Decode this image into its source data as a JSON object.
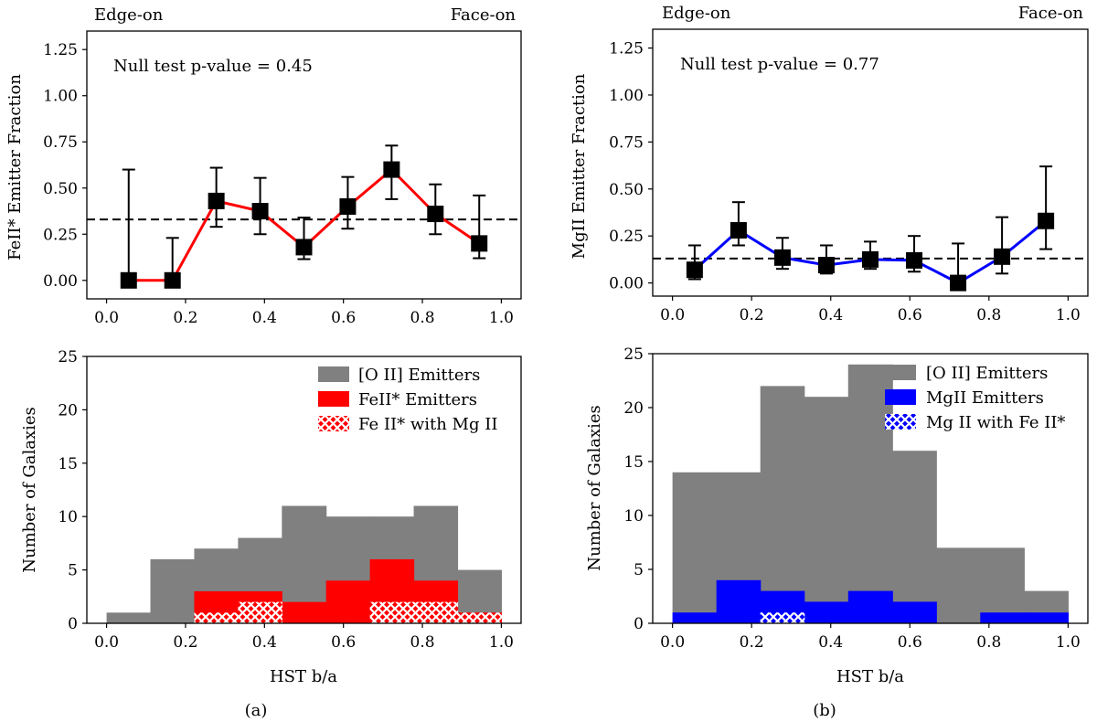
{
  "chart_data": [
    {
      "id": "a-top",
      "type": "line",
      "title": "",
      "xlabel": "",
      "ylabel": "FeII* Emitter Fraction",
      "xlim": [
        -0.05,
        1.05
      ],
      "ylim": [
        -0.1,
        1.35
      ],
      "xticks": [
        "0.0",
        "0.2",
        "0.4",
        "0.6",
        "0.8",
        "1.0"
      ],
      "yticks": [
        "0.00",
        "0.25",
        "0.50",
        "0.75",
        "1.00",
        "1.25"
      ],
      "x": [
        0.056,
        0.167,
        0.278,
        0.389,
        0.5,
        0.611,
        0.722,
        0.833,
        0.944
      ],
      "y": [
        0.0,
        0.0,
        0.43,
        0.375,
        0.18,
        0.4,
        0.6,
        0.36,
        0.2
      ],
      "yerr_lower": [
        0.0,
        0.0,
        0.14,
        0.125,
        0.065,
        0.12,
        0.16,
        0.11,
        0.08
      ],
      "yerr_upper": [
        0.6,
        0.23,
        0.18,
        0.18,
        0.16,
        0.16,
        0.13,
        0.16,
        0.26
      ],
      "line_color": "#ff0000",
      "marker_color": "#000000",
      "reference_line": 0.33,
      "annotation": "Null test p-value = 0.45",
      "corner_left": "Edge-on",
      "corner_right": "Face-on"
    },
    {
      "id": "a-bottom",
      "type": "bar",
      "xlabel": "HST b/a",
      "ylabel": "Number of Galaxies",
      "xlim": [
        -0.05,
        1.05
      ],
      "ylim": [
        0,
        25
      ],
      "xticks": [
        "0.0",
        "0.2",
        "0.4",
        "0.6",
        "0.8",
        "1.0"
      ],
      "yticks": [
        "0",
        "5",
        "10",
        "15",
        "20",
        "25"
      ],
      "bin_edges": [
        0.0,
        0.111,
        0.222,
        0.333,
        0.444,
        0.556,
        0.667,
        0.778,
        0.889,
        1.0
      ],
      "series": [
        {
          "name": "[O II] Emitters",
          "values": [
            1,
            6,
            7,
            8,
            11,
            10,
            10,
            11,
            5
          ],
          "color": "#808080",
          "style": "solid"
        },
        {
          "name": "FeII* Emitters",
          "values": [
            0,
            0,
            3,
            3,
            2,
            4,
            6,
            4,
            1
          ],
          "color": "#ff0000",
          "style": "solid"
        },
        {
          "name": "Fe II* with Mg II",
          "values": [
            0,
            0,
            1,
            2,
            0,
            0,
            2,
            2,
            1
          ],
          "color": "#ff0000",
          "style": "hatch"
        }
      ]
    },
    {
      "id": "b-top",
      "type": "line",
      "title": "",
      "xlabel": "",
      "ylabel": "MgII Emitter Fraction",
      "xlim": [
        -0.05,
        1.05
      ],
      "ylim": [
        -0.07,
        1.35
      ],
      "xticks": [
        "0.0",
        "0.2",
        "0.4",
        "0.6",
        "0.8",
        "1.0"
      ],
      "yticks": [
        "0.00",
        "0.25",
        "0.50",
        "0.75",
        "1.00",
        "1.25"
      ],
      "x": [
        0.056,
        0.167,
        0.278,
        0.389,
        0.5,
        0.611,
        0.722,
        0.833,
        0.944
      ],
      "y": [
        0.07,
        0.28,
        0.135,
        0.095,
        0.125,
        0.12,
        0.0,
        0.14,
        0.33
      ],
      "yerr_lower": [
        0.05,
        0.08,
        0.06,
        0.045,
        0.05,
        0.06,
        0.0,
        0.09,
        0.15
      ],
      "yerr_upper": [
        0.13,
        0.15,
        0.105,
        0.105,
        0.095,
        0.13,
        0.21,
        0.21,
        0.29
      ],
      "line_color": "#0000ff",
      "marker_color": "#000000",
      "reference_line": 0.13,
      "annotation": "Null test p-value = 0.77",
      "corner_left": "Edge-on",
      "corner_right": "Face-on"
    },
    {
      "id": "b-bottom",
      "type": "bar",
      "xlabel": "HST b/a",
      "ylabel": "Number of Galaxies",
      "xlim": [
        -0.05,
        1.05
      ],
      "ylim": [
        0,
        25
      ],
      "xticks": [
        "0.0",
        "0.2",
        "0.4",
        "0.6",
        "0.8",
        "1.0"
      ],
      "yticks": [
        "0",
        "5",
        "10",
        "15",
        "20",
        "25"
      ],
      "bin_edges": [
        0.0,
        0.111,
        0.222,
        0.333,
        0.444,
        0.556,
        0.667,
        0.778,
        0.889,
        1.0
      ],
      "series": [
        {
          "name": "[O II] Emitters",
          "values": [
            14,
            14,
            22,
            21,
            24,
            16,
            7,
            7,
            3
          ],
          "color": "#808080",
          "style": "solid"
        },
        {
          "name": "MgII Emitters",
          "values": [
            1,
            4,
            3,
            2,
            3,
            2,
            0,
            1,
            1
          ],
          "color": "#0000ff",
          "style": "solid"
        },
        {
          "name": "Mg II with Fe II*",
          "values": [
            0,
            0,
            1,
            0,
            0,
            0,
            0,
            0,
            0
          ],
          "color": "#0000ff",
          "style": "hatch"
        }
      ]
    }
  ],
  "captions": {
    "a": "(a)",
    "b": "(b)"
  }
}
